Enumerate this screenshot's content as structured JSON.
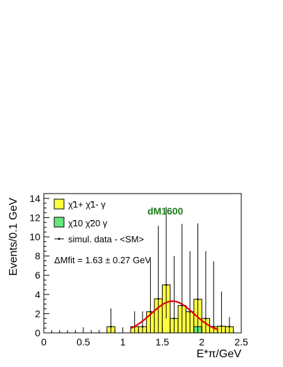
{
  "chart_data": {
    "type": "bar",
    "bin_width": 0.1,
    "xlim": [
      0,
      2.5
    ],
    "ylim": [
      0,
      14.5
    ],
    "xticks": [
      0,
      0.5,
      1,
      1.5,
      2,
      2.5
    ],
    "yticks": [
      0,
      2,
      4,
      6,
      8,
      10,
      12,
      14
    ],
    "xlabel": "E*π/GeV",
    "ylabel": "Events/0.1 GeV",
    "sample_label": "dM1600",
    "fit_annotation": "ΔMfit = 1.63 ± 0.27 GeV",
    "legend": {
      "chargino": "χ̃1+ χ̃1- γ",
      "neutralino": "χ̃10 χ̃20 γ",
      "data": "simul. data - <SM>"
    },
    "series": [
      {
        "key": "chargino",
        "color": "#ffff40",
        "bin_low": [
          0.8,
          1.1,
          1.2,
          1.3,
          1.4,
          1.5,
          1.6,
          1.7,
          1.8,
          1.9,
          2.0,
          2.1,
          2.2,
          2.3
        ],
        "values": [
          0.65,
          0.65,
          0.65,
          2.2,
          3.55,
          5.0,
          1.5,
          2.85,
          2.2,
          3.5,
          1.5,
          0.65,
          0.7,
          0.65
        ]
      },
      {
        "key": "neutralino",
        "color": "#66e87a",
        "bin_low": [
          1.9
        ],
        "values": [
          0.65
        ]
      }
    ],
    "data_points": {
      "x": [
        0.85,
        1.15,
        1.25,
        1.35,
        1.45,
        1.55,
        1.65,
        1.75,
        1.85,
        1.95,
        2.05,
        2.15,
        2.25,
        2.35
      ],
      "y": [
        0.65,
        0.65,
        0.65,
        2.2,
        3.55,
        5.0,
        1.5,
        2.85,
        2.2,
        3.5,
        1.5,
        0.65,
        0.7,
        0.65
      ],
      "err_up": [
        1.9,
        1.6,
        1.6,
        5.5,
        7.6,
        8.1,
        6.5,
        8.5,
        6.3,
        7.9,
        7.0,
        6.8,
        3.6,
        1.0
      ],
      "err_down": [
        0.65,
        0.65,
        0.65,
        2.2,
        3.55,
        3.5,
        1.5,
        2.85,
        2.2,
        3.5,
        1.5,
        0.65,
        0.7,
        0.65
      ]
    },
    "fit": {
      "color": "#e00000",
      "mean": 1.63,
      "sigma": 0.27,
      "amplitude": 3.3,
      "x_range": [
        1.1,
        2.2
      ]
    }
  }
}
